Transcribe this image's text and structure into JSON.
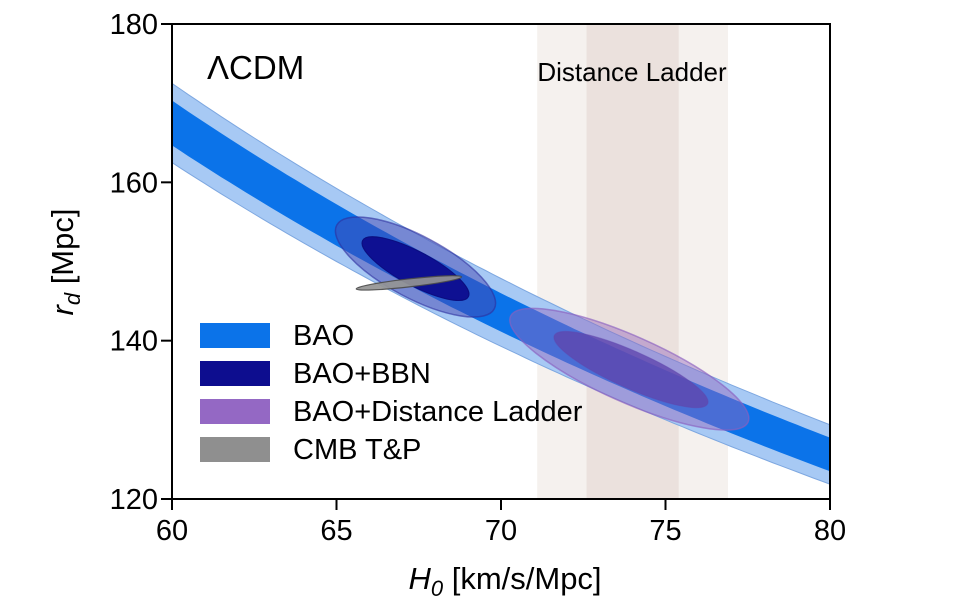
{
  "figure": {
    "title": "ΛCDM",
    "annotation": "Distance Ladder"
  },
  "axes": {
    "x": {
      "label_parts": [
        "H",
        "0",
        " [km/s/Mpc]"
      ],
      "ticks": [
        60,
        65,
        70,
        75,
        80
      ],
      "range": [
        60,
        80
      ]
    },
    "y": {
      "label_parts": [
        "r",
        "d",
        " [Mpc]"
      ],
      "ticks": [
        120,
        140,
        160,
        180
      ],
      "range": [
        120,
        180
      ]
    }
  },
  "legend": {
    "items": [
      {
        "label": "BAO",
        "color": "#0b73e9"
      },
      {
        "label": "BAO+BBN",
        "color": "#0d0d8f"
      },
      {
        "label": "BAO+Distance Ladder",
        "color": "#9468c4"
      },
      {
        "label": "CMB T&P",
        "color": "#8f8f8f"
      }
    ]
  },
  "chart_data": {
    "type": "confidence-regions",
    "title": "ΛCDM",
    "xlabel": "H0 [km/s/Mpc]",
    "ylabel": "rd [Mpc]",
    "xlim": [
      60,
      80
    ],
    "ylim": [
      120,
      180
    ],
    "grid": false,
    "legend_position": "lower-left-inside",
    "bao_band": {
      "name": "BAO",
      "relation": "rd = K / H0",
      "K_center": 10050,
      "K_sigma1": [
        9880,
        10220
      ],
      "K_sigma2": [
        9750,
        10350
      ],
      "color_sigma1": "#0b73e9",
      "color_sigma2": "#a7c9f4",
      "edge_color": "#7da7e0"
    },
    "distance_ladder_vspan": {
      "label": "Distance Ladder",
      "h0_center": 74.0,
      "h0_sigma1": [
        72.6,
        75.4
      ],
      "h0_sigma2": [
        71.1,
        76.9
      ],
      "color_sigma1": "#ebe1dd",
      "color_sigma2": "#f5f1ee"
    },
    "ellipses": [
      {
        "name": "BAO+BBN 2sigma",
        "cx": 67.4,
        "cy": 149.3,
        "rx_h0": 2.71,
        "ry_rd": 3.92,
        "angle_deg": 28,
        "fill": "#4648b2",
        "fill_opacity": 0.5,
        "stroke": "#2d2f9e",
        "stroke_opacity": 0.6,
        "stroke_width": 1.5
      },
      {
        "name": "BAO+BBN 1sigma",
        "cx": 67.4,
        "cy": 149.1,
        "rx_h0": 1.82,
        "ry_rd": 2.15,
        "angle_deg": 28,
        "fill": "#0d0d8f",
        "fill_opacity": 0.97,
        "stroke": "#0a0a7a",
        "stroke_opacity": 0.9,
        "stroke_width": 1
      },
      {
        "name": "BAO+Distance-Ladder 2sigma",
        "cx": 73.9,
        "cy": 136.4,
        "rx_h0": 3.95,
        "ry_rd": 4.17,
        "angle_deg": 24,
        "fill": "#9467bd",
        "fill_opacity": 0.45,
        "stroke": "#8a5fc0",
        "stroke_opacity": 0.65,
        "stroke_width": 1.5
      },
      {
        "name": "BAO+Distance-Ladder 1sigma",
        "cx": 73.95,
        "cy": 136.35,
        "rx_h0": 2.55,
        "ry_rd": 2.34,
        "angle_deg": 24,
        "fill": "#5f46ae",
        "fill_opacity": 0.8,
        "stroke": "#5f46ae",
        "stroke_opacity": 0.5,
        "stroke_width": 1
      },
      {
        "name": "CMB T&P",
        "cx": 67.2,
        "cy": 147.3,
        "rx_h0": 1.61,
        "ry_rd": 0.5,
        "angle_deg": -6.5,
        "fill": "#949494",
        "fill_opacity": 0.92,
        "stroke": "#4a4a4a",
        "stroke_opacity": 0.9,
        "stroke_width": 1.2
      }
    ]
  }
}
